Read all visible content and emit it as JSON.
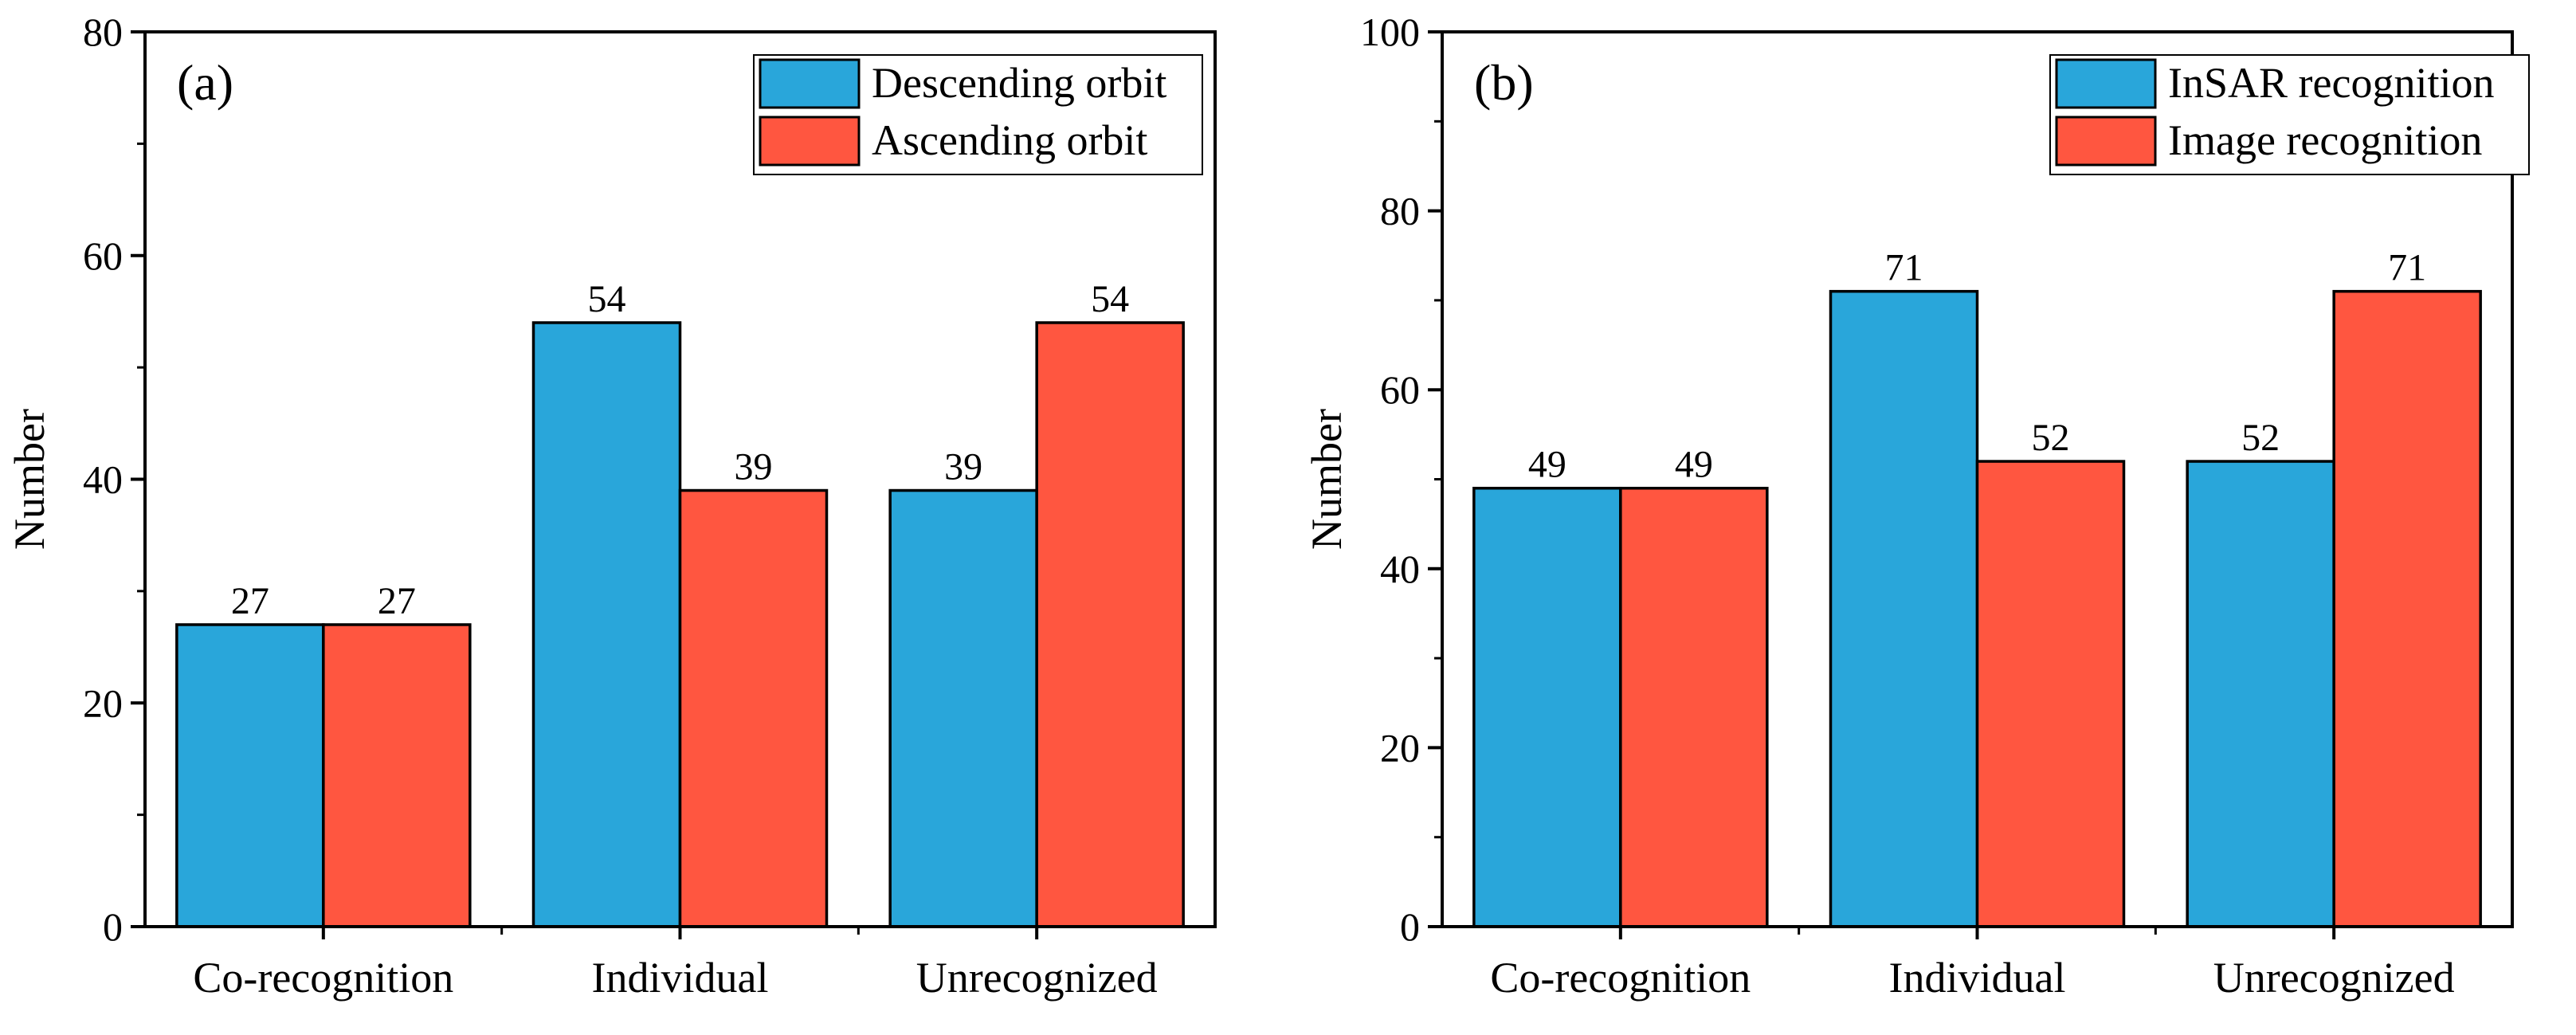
{
  "chart_data": [
    {
      "type": "bar",
      "panel_label": "(a)",
      "categories": [
        "Co-recognition",
        "Individual",
        "Unrecognized"
      ],
      "series": [
        {
          "name": "Descending orbit",
          "values": [
            27,
            54,
            39
          ],
          "color": "#29A6DA"
        },
        {
          "name": "Ascending orbit",
          "values": [
            27,
            39,
            54
          ],
          "color": "#FF5640"
        }
      ],
      "xlabel": "",
      "ylabel": "Number",
      "ylim": [
        0,
        80
      ],
      "yticks": [
        0,
        20,
        40,
        60,
        80
      ],
      "ytick_labels": [
        "0",
        "20",
        "40",
        "60",
        "80"
      ],
      "grid": false,
      "legend_position": "top-right"
    },
    {
      "type": "bar",
      "panel_label": "(b)",
      "categories": [
        "Co-recognition",
        "Individual",
        "Unrecognized"
      ],
      "series": [
        {
          "name": "InSAR recognition",
          "values": [
            49,
            71,
            52
          ],
          "color": "#29A6DA"
        },
        {
          "name": "Image recognition",
          "values": [
            49,
            52,
            71
          ],
          "color": "#FF5640"
        }
      ],
      "xlabel": "",
      "ylabel": "Number",
      "ylim": [
        0,
        100
      ],
      "yticks": [
        0,
        20,
        40,
        60,
        80,
        100
      ],
      "ytick_labels": [
        "0",
        "20",
        "40",
        "60",
        "80",
        "100"
      ],
      "grid": false,
      "legend_position": "top-right"
    }
  ]
}
